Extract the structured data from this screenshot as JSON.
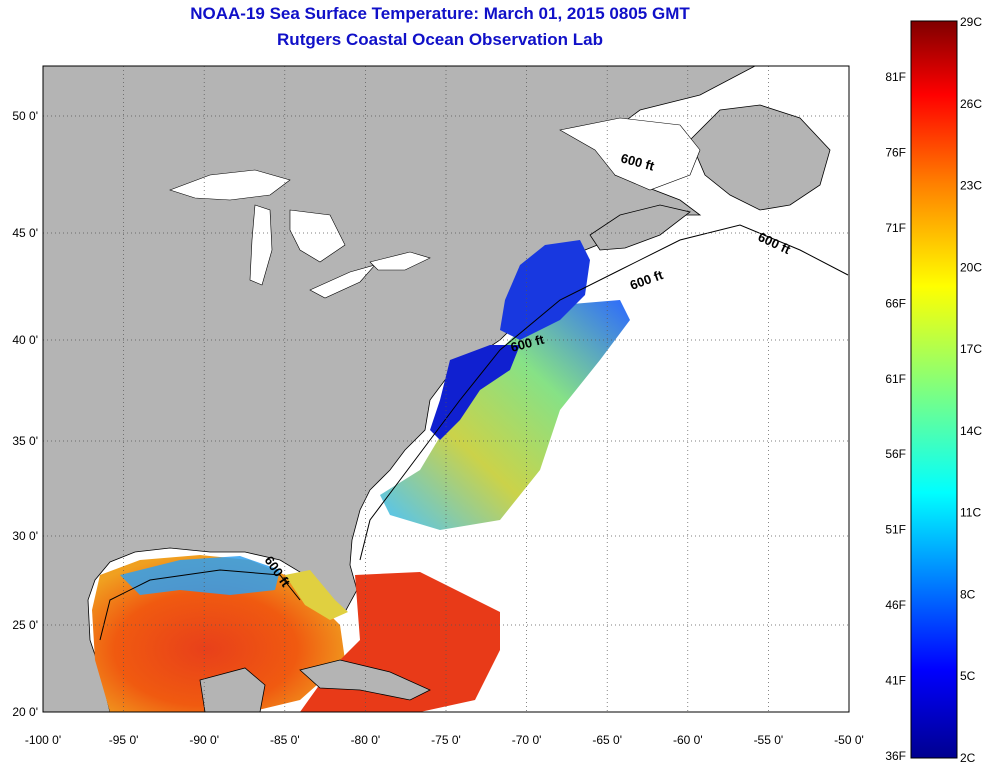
{
  "header": {
    "title": "NOAA-19 Sea Surface Temperature:  March 01, 2015 0805 GMT",
    "subtitle": "Rutgers Coastal Ocean Observation Lab"
  },
  "map": {
    "lon_ticks": [
      "-100 0'",
      "-95 0'",
      "-90 0'",
      "-85 0'",
      "-80 0'",
      "-75 0'",
      "-70 0'",
      "-65 0'",
      "-60 0'",
      "-55 0'",
      "-50 0'"
    ],
    "lat_ticks": [
      "50 0'",
      "45 0'",
      "40 0'",
      "35 0'",
      "30 0'",
      "25 0'",
      "20 0'"
    ],
    "isobath_labels": [
      "600 ft",
      "600 ft",
      "600 ft",
      "600 ft",
      "600 ft"
    ],
    "colors": {
      "land": "#b4b4b4",
      "ocean_no_data": "#ffffff",
      "grid": "#555555"
    }
  },
  "colorbar": {
    "celsius_labels": [
      "29C",
      "26C",
      "23C",
      "20C",
      "17C",
      "14C",
      "11C",
      "8C",
      "5C",
      "2C"
    ],
    "fahrenheit_labels": [
      "81F",
      "76F",
      "71F",
      "66F",
      "61F",
      "56F",
      "51F",
      "46F",
      "41F",
      "36F"
    ],
    "colors": [
      "#7f0000",
      "#ff0000",
      "#ff7f00",
      "#ffff00",
      "#7fff7f",
      "#00ffff",
      "#007fff",
      "#0000ff",
      "#00008f"
    ]
  }
}
